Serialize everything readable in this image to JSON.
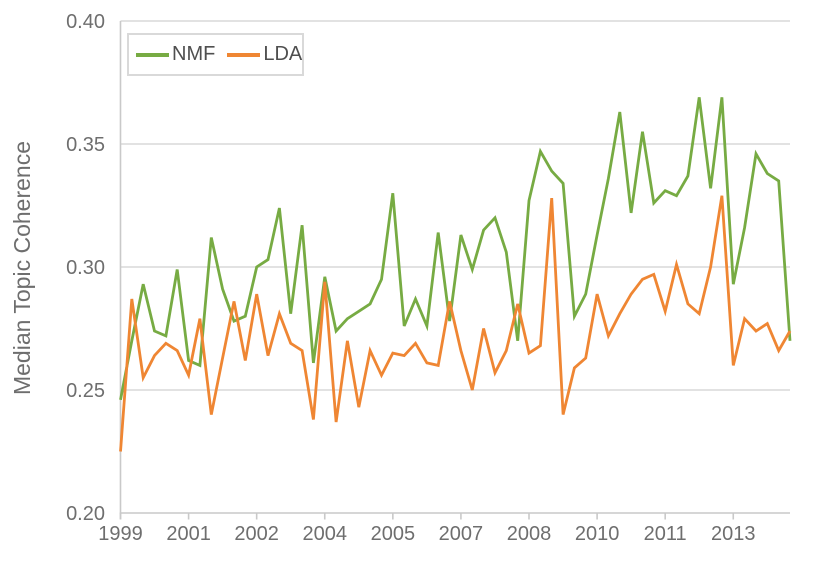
{
  "chart_data": {
    "type": "line",
    "title": "",
    "xlabel": "",
    "ylabel": "Median Topic Coherence",
    "ylim": [
      0.2,
      0.4
    ],
    "grid": "horizontal",
    "legend_position": "top-left",
    "colors": {
      "nmf_green": "#77ab43",
      "lda_orange": "#ef8633",
      "gridline": "#d9d9d9",
      "axis": "#c9c9c9",
      "tick_text": "#6e6e6e",
      "legend_text": "#4f4f4f",
      "background": "#ffffff"
    },
    "yticks": [
      {
        "value": 0.2,
        "label": "0.20"
      },
      {
        "value": 0.25,
        "label": "0.25"
      },
      {
        "value": 0.3,
        "label": "0.30"
      },
      {
        "value": 0.35,
        "label": "0.35"
      },
      {
        "value": 0.4,
        "label": "0.40"
      }
    ],
    "xticks": [
      {
        "x": 1999.5,
        "label": "1999"
      },
      {
        "x": 2001.0,
        "label": "2001"
      },
      {
        "x": 2002.5,
        "label": "2002"
      },
      {
        "x": 2004.0,
        "label": "2004"
      },
      {
        "x": 2005.5,
        "label": "2005"
      },
      {
        "x": 2007.0,
        "label": "2007"
      },
      {
        "x": 2008.5,
        "label": "2008"
      },
      {
        "x": 2010.0,
        "label": "2010"
      },
      {
        "x": 2011.5,
        "label": "2011"
      },
      {
        "x": 2013.0,
        "label": "2013"
      }
    ],
    "x_unit": "decimal year, quarterly",
    "x": [
      1999.5,
      1999.75,
      2000.0,
      2000.25,
      2000.5,
      2000.75,
      2001.0,
      2001.25,
      2001.5,
      2001.75,
      2002.0,
      2002.25,
      2002.5,
      2002.75,
      2003.0,
      2003.25,
      2003.5,
      2003.75,
      2004.0,
      2004.25,
      2004.5,
      2004.75,
      2005.0,
      2005.25,
      2005.5,
      2005.75,
      2006.0,
      2006.25,
      2006.5,
      2006.75,
      2007.0,
      2007.25,
      2007.5,
      2007.75,
      2008.0,
      2008.25,
      2008.5,
      2008.75,
      2009.0,
      2009.25,
      2009.5,
      2009.75,
      2010.0,
      2010.25,
      2010.5,
      2010.75,
      2011.0,
      2011.25,
      2011.5,
      2011.75,
      2012.0,
      2012.25,
      2012.5,
      2012.75,
      2013.0,
      2013.25,
      2013.5,
      2013.75,
      2014.0,
      2014.25
    ],
    "series": [
      {
        "name": "NMF",
        "color": "#77ab43",
        "values": [
          0.246,
          0.27,
          0.293,
          0.274,
          0.272,
          0.299,
          0.262,
          0.26,
          0.312,
          0.291,
          0.278,
          0.28,
          0.3,
          0.303,
          0.324,
          0.281,
          0.317,
          0.261,
          0.296,
          0.274,
          0.279,
          0.282,
          0.285,
          0.295,
          0.33,
          0.276,
          0.287,
          0.276,
          0.314,
          0.278,
          0.313,
          0.299,
          0.315,
          0.32,
          0.306,
          0.27,
          0.327,
          0.347,
          0.339,
          0.334,
          0.28,
          0.289,
          0.313,
          0.336,
          0.363,
          0.322,
          0.355,
          0.326,
          0.331,
          0.329,
          0.337,
          0.369,
          0.332,
          0.369,
          0.293,
          0.316,
          0.346,
          0.338,
          0.335,
          0.27
        ]
      },
      {
        "name": "LDA",
        "color": "#ef8633",
        "values": [
          0.225,
          0.287,
          0.255,
          0.264,
          0.269,
          0.266,
          0.256,
          0.279,
          0.24,
          0.263,
          0.286,
          0.262,
          0.289,
          0.264,
          0.281,
          0.269,
          0.266,
          0.238,
          0.294,
          0.237,
          0.27,
          0.243,
          0.266,
          0.256,
          0.265,
          0.264,
          0.269,
          0.261,
          0.26,
          0.286,
          0.266,
          0.25,
          0.275,
          0.257,
          0.266,
          0.285,
          0.265,
          0.268,
          0.328,
          0.24,
          0.259,
          0.263,
          0.289,
          0.272,
          0.281,
          0.289,
          0.295,
          0.297,
          0.282,
          0.301,
          0.285,
          0.281,
          0.3,
          0.329,
          0.26,
          0.279,
          0.274,
          0.277,
          0.266,
          0.274
        ]
      }
    ]
  },
  "legend": {
    "nmf_label": "NMF",
    "lda_label": "LDA"
  }
}
